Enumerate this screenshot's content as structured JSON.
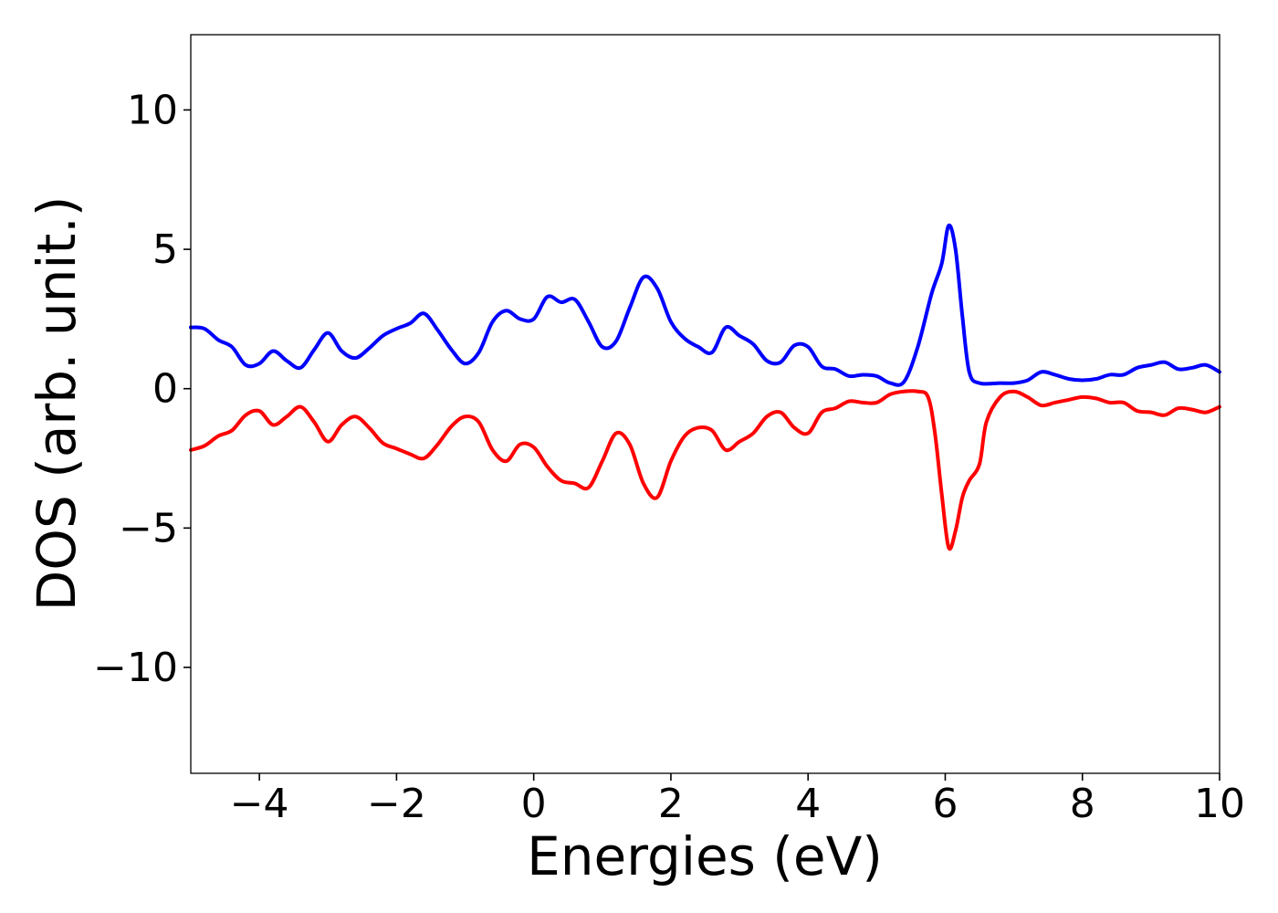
{
  "chart_data": {
    "type": "line",
    "title": "",
    "xlabel": "Energies (eV)",
    "ylabel": "DOS (arb. unit.)",
    "xlim": [
      -5,
      10
    ],
    "ylim": [
      -13.8,
      12.7
    ],
    "grid": false,
    "legend": "none",
    "xticks": [
      -4,
      -2,
      0,
      2,
      4,
      6,
      8,
      10
    ],
    "xtick_labels": [
      "−4",
      "−2",
      "0",
      "2",
      "4",
      "6",
      "8",
      "10"
    ],
    "yticks": [
      10,
      5,
      0,
      -5,
      -10
    ],
    "ytick_labels": [
      "10",
      "5",
      "0",
      "−5",
      "−10"
    ],
    "series": [
      {
        "color": "#0000ff",
        "points": [
          [
            -5.0,
            2.2
          ],
          [
            -4.8,
            2.15
          ],
          [
            -4.6,
            1.75
          ],
          [
            -4.4,
            1.5
          ],
          [
            -4.2,
            0.85
          ],
          [
            -4.0,
            0.9
          ],
          [
            -3.8,
            1.35
          ],
          [
            -3.6,
            1.0
          ],
          [
            -3.4,
            0.75
          ],
          [
            -3.2,
            1.4
          ],
          [
            -3.0,
            2.0
          ],
          [
            -2.8,
            1.35
          ],
          [
            -2.6,
            1.1
          ],
          [
            -2.4,
            1.45
          ],
          [
            -2.2,
            1.9
          ],
          [
            -2.0,
            2.15
          ],
          [
            -1.8,
            2.35
          ],
          [
            -1.6,
            2.7
          ],
          [
            -1.4,
            2.1
          ],
          [
            -1.2,
            1.4
          ],
          [
            -1.0,
            0.9
          ],
          [
            -0.8,
            1.3
          ],
          [
            -0.6,
            2.4
          ],
          [
            -0.4,
            2.8
          ],
          [
            -0.2,
            2.5
          ],
          [
            0.0,
            2.5
          ],
          [
            0.2,
            3.3
          ],
          [
            0.4,
            3.1
          ],
          [
            0.6,
            3.2
          ],
          [
            0.8,
            2.4
          ],
          [
            1.0,
            1.5
          ],
          [
            1.2,
            1.7
          ],
          [
            1.4,
            2.9
          ],
          [
            1.6,
            4.0
          ],
          [
            1.8,
            3.6
          ],
          [
            2.0,
            2.4
          ],
          [
            2.2,
            1.8
          ],
          [
            2.4,
            1.5
          ],
          [
            2.6,
            1.3
          ],
          [
            2.8,
            2.2
          ],
          [
            3.0,
            1.9
          ],
          [
            3.2,
            1.6
          ],
          [
            3.4,
            1.0
          ],
          [
            3.6,
            0.95
          ],
          [
            3.8,
            1.55
          ],
          [
            4.0,
            1.5
          ],
          [
            4.2,
            0.8
          ],
          [
            4.4,
            0.7
          ],
          [
            4.6,
            0.45
          ],
          [
            4.8,
            0.5
          ],
          [
            5.0,
            0.45
          ],
          [
            5.2,
            0.2
          ],
          [
            5.4,
            0.25
          ],
          [
            5.6,
            1.5
          ],
          [
            5.8,
            3.4
          ],
          [
            5.95,
            4.5
          ],
          [
            6.05,
            5.85
          ],
          [
            6.15,
            5.0
          ],
          [
            6.25,
            2.6
          ],
          [
            6.35,
            0.6
          ],
          [
            6.5,
            0.2
          ],
          [
            6.8,
            0.2
          ],
          [
            7.0,
            0.2
          ],
          [
            7.2,
            0.3
          ],
          [
            7.4,
            0.6
          ],
          [
            7.6,
            0.5
          ],
          [
            7.8,
            0.35
          ],
          [
            8.0,
            0.3
          ],
          [
            8.2,
            0.35
          ],
          [
            8.4,
            0.5
          ],
          [
            8.6,
            0.5
          ],
          [
            8.8,
            0.75
          ],
          [
            9.0,
            0.85
          ],
          [
            9.2,
            0.95
          ],
          [
            9.4,
            0.7
          ],
          [
            9.6,
            0.75
          ],
          [
            9.8,
            0.85
          ],
          [
            10.0,
            0.6
          ]
        ]
      },
      {
        "color": "#ff0000",
        "points": [
          [
            -5.0,
            -2.2
          ],
          [
            -4.8,
            -2.05
          ],
          [
            -4.6,
            -1.7
          ],
          [
            -4.4,
            -1.5
          ],
          [
            -4.2,
            -0.95
          ],
          [
            -4.0,
            -0.8
          ],
          [
            -3.8,
            -1.3
          ],
          [
            -3.6,
            -1.0
          ],
          [
            -3.4,
            -0.65
          ],
          [
            -3.2,
            -1.2
          ],
          [
            -3.0,
            -1.9
          ],
          [
            -2.8,
            -1.3
          ],
          [
            -2.6,
            -1.0
          ],
          [
            -2.4,
            -1.4
          ],
          [
            -2.2,
            -1.95
          ],
          [
            -2.0,
            -2.15
          ],
          [
            -1.8,
            -2.35
          ],
          [
            -1.6,
            -2.5
          ],
          [
            -1.4,
            -2.0
          ],
          [
            -1.2,
            -1.35
          ],
          [
            -1.0,
            -1.0
          ],
          [
            -0.8,
            -1.2
          ],
          [
            -0.6,
            -2.2
          ],
          [
            -0.4,
            -2.6
          ],
          [
            -0.2,
            -2.0
          ],
          [
            0.0,
            -2.1
          ],
          [
            0.2,
            -2.8
          ],
          [
            0.4,
            -3.3
          ],
          [
            0.6,
            -3.4
          ],
          [
            0.8,
            -3.55
          ],
          [
            1.0,
            -2.6
          ],
          [
            1.2,
            -1.6
          ],
          [
            1.4,
            -2.0
          ],
          [
            1.6,
            -3.4
          ],
          [
            1.8,
            -3.9
          ],
          [
            2.0,
            -2.6
          ],
          [
            2.2,
            -1.7
          ],
          [
            2.4,
            -1.4
          ],
          [
            2.6,
            -1.5
          ],
          [
            2.8,
            -2.2
          ],
          [
            3.0,
            -1.9
          ],
          [
            3.2,
            -1.6
          ],
          [
            3.4,
            -1.0
          ],
          [
            3.6,
            -0.85
          ],
          [
            3.8,
            -1.4
          ],
          [
            4.0,
            -1.6
          ],
          [
            4.2,
            -0.85
          ],
          [
            4.4,
            -0.7
          ],
          [
            4.6,
            -0.45
          ],
          [
            4.8,
            -0.5
          ],
          [
            5.0,
            -0.5
          ],
          [
            5.2,
            -0.2
          ],
          [
            5.4,
            -0.1
          ],
          [
            5.6,
            -0.1
          ],
          [
            5.75,
            -0.3
          ],
          [
            5.85,
            -1.6
          ],
          [
            5.95,
            -3.8
          ],
          [
            6.05,
            -5.7
          ],
          [
            6.15,
            -5.1
          ],
          [
            6.25,
            -3.9
          ],
          [
            6.35,
            -3.3
          ],
          [
            6.5,
            -2.7
          ],
          [
            6.6,
            -1.2
          ],
          [
            6.8,
            -0.3
          ],
          [
            7.0,
            -0.1
          ],
          [
            7.2,
            -0.3
          ],
          [
            7.4,
            -0.6
          ],
          [
            7.6,
            -0.5
          ],
          [
            7.8,
            -0.4
          ],
          [
            8.0,
            -0.3
          ],
          [
            8.2,
            -0.35
          ],
          [
            8.4,
            -0.5
          ],
          [
            8.6,
            -0.5
          ],
          [
            8.8,
            -0.8
          ],
          [
            9.0,
            -0.85
          ],
          [
            9.2,
            -0.95
          ],
          [
            9.4,
            -0.7
          ],
          [
            9.6,
            -0.75
          ],
          [
            9.8,
            -0.85
          ],
          [
            10.0,
            -0.65
          ]
        ]
      }
    ]
  }
}
